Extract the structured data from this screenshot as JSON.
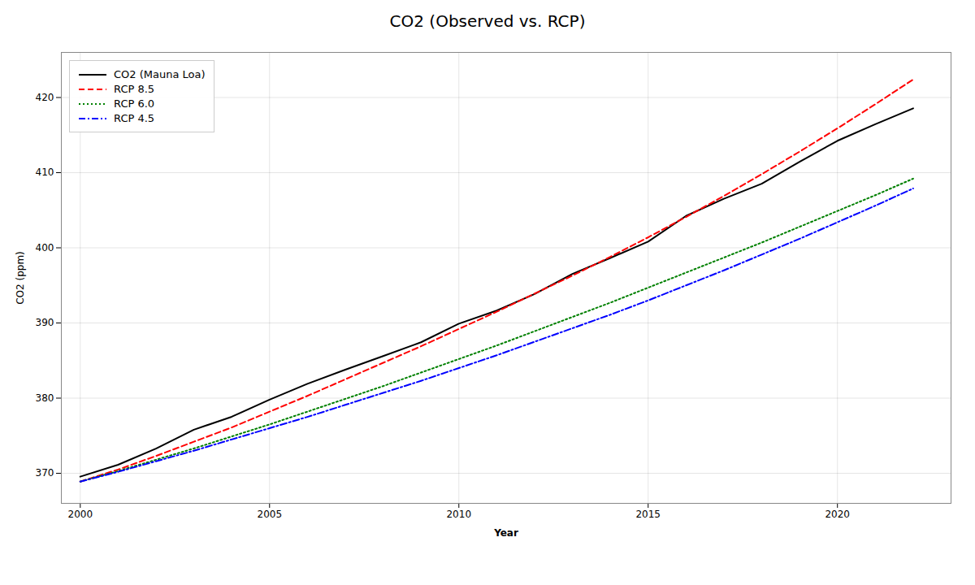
{
  "chart_data": {
    "type": "line",
    "title": "CO2 (Observed vs. RCP)",
    "xlabel": "Year",
    "ylabel": "CO2 (ppm)",
    "x": [
      2000,
      2001,
      2002,
      2003,
      2004,
      2005,
      2006,
      2007,
      2008,
      2009,
      2010,
      2011,
      2012,
      2013,
      2014,
      2015,
      2016,
      2017,
      2018,
      2019,
      2020,
      2021,
      2022
    ],
    "series": [
      {
        "name": "CO2 (Mauna Loa)",
        "color": "#000000",
        "line_style": "solid",
        "values": [
          369.55,
          371.14,
          373.28,
          375.8,
          377.52,
          379.8,
          381.9,
          383.79,
          385.6,
          387.43,
          389.9,
          391.65,
          393.85,
          396.52,
          398.65,
          400.83,
          404.24,
          406.53,
          408.52,
          411.44,
          414.24,
          416.45,
          418.56
        ]
      },
      {
        "name": "RCP 8.5",
        "color": "#ff0000",
        "line_style": "dashed",
        "values": [
          368.9,
          370.5,
          372.3,
          374.2,
          376.1,
          378.2,
          380.3,
          382.5,
          384.7,
          386.9,
          389.2,
          391.5,
          393.9,
          396.3,
          398.8,
          401.4,
          404.1,
          406.9,
          409.8,
          412.8,
          415.9,
          419.1,
          422.4
        ]
      },
      {
        "name": "RCP 6.0",
        "color": "#008000",
        "line_style": "dotted",
        "values": [
          368.9,
          370.3,
          371.8,
          373.3,
          374.9,
          376.5,
          378.2,
          379.9,
          381.6,
          383.4,
          385.2,
          387.0,
          388.9,
          390.8,
          392.7,
          394.7,
          396.7,
          398.7,
          400.7,
          402.8,
          404.9,
          407.0,
          409.2
        ]
      },
      {
        "name": "RCP 4.5",
        "color": "#0000ff",
        "line_style": "dashdot",
        "values": [
          368.9,
          370.2,
          371.6,
          373.0,
          374.5,
          376.0,
          377.5,
          379.1,
          380.7,
          382.3,
          384.0,
          385.7,
          387.5,
          389.3,
          391.1,
          393.0,
          395.0,
          397.0,
          399.1,
          401.2,
          403.4,
          405.6,
          407.9
        ]
      }
    ],
    "xlim": [
      1999.5,
      2023.0
    ],
    "ylim": [
      366,
      426
    ],
    "xticks": [
      2000,
      2005,
      2010,
      2015,
      2020
    ],
    "yticks": [
      370,
      380,
      390,
      400,
      410,
      420
    ],
    "grid": true,
    "legend": "upper left"
  }
}
